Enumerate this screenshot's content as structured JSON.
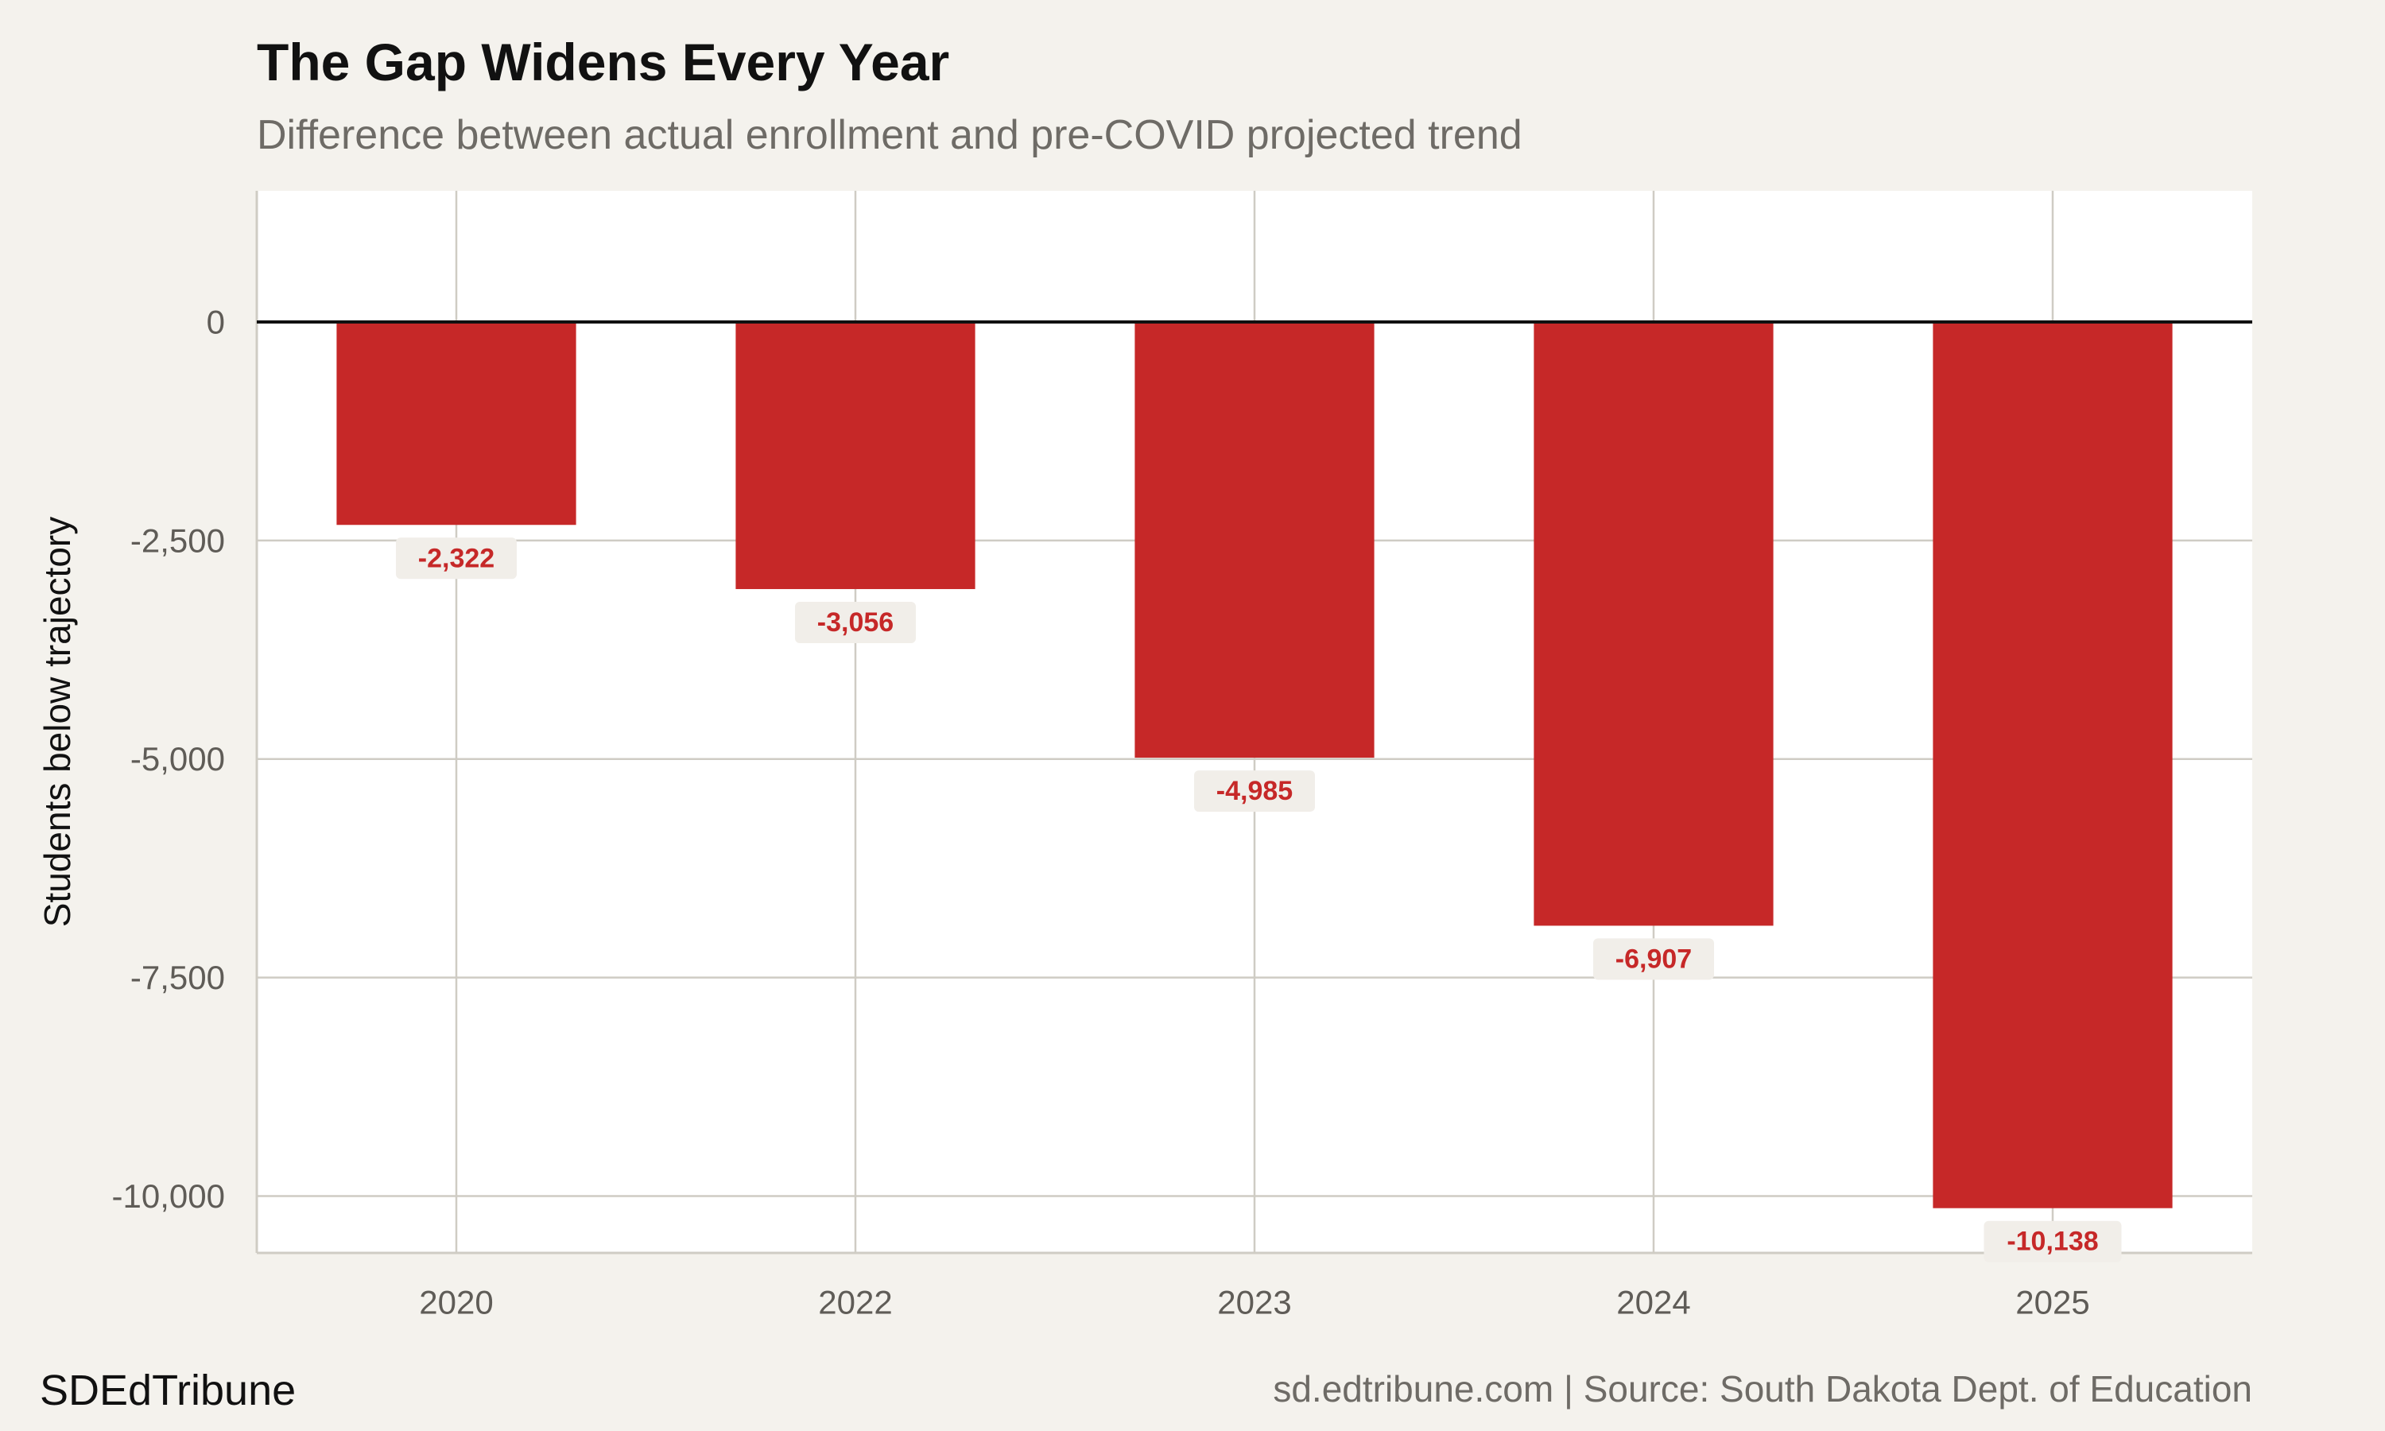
{
  "header": {
    "title": "The Gap Widens Every Year",
    "subtitle": "Difference between actual enrollment and pre-COVID projected trend"
  },
  "footer": {
    "brand": "SDEdTribune",
    "source": "sd.edtribune.com | Source: South Dakota Dept. of Education"
  },
  "colors": {
    "bar": "#c62828",
    "page_background": "#f4f2ed",
    "panel_background": "#ffffff",
    "gridline": "#cfccc4",
    "label_box": "#f1eee9"
  },
  "chart_data": {
    "type": "bar",
    "title": "The Gap Widens Every Year",
    "subtitle": "Difference between actual enrollment and pre-COVID projected trend",
    "xlabel": "",
    "ylabel": "Students below trajectory",
    "categories": [
      "2020",
      "2022",
      "2023",
      "2024",
      "2025"
    ],
    "values": [
      -2322,
      -3056,
      -4985,
      -6907,
      -10138
    ],
    "value_labels": [
      "-2,322",
      "-3,056",
      "-4,985",
      "-6,907",
      "-10,138"
    ],
    "ylim": [
      -10650,
      1500
    ],
    "yticks": [
      0,
      -2500,
      -5000,
      -7500,
      -10000
    ],
    "ytick_labels": [
      "0",
      "-2,500",
      "-5,000",
      "-7,500",
      "-10,000"
    ],
    "grid": true,
    "zero_line": true,
    "legend": "none"
  }
}
